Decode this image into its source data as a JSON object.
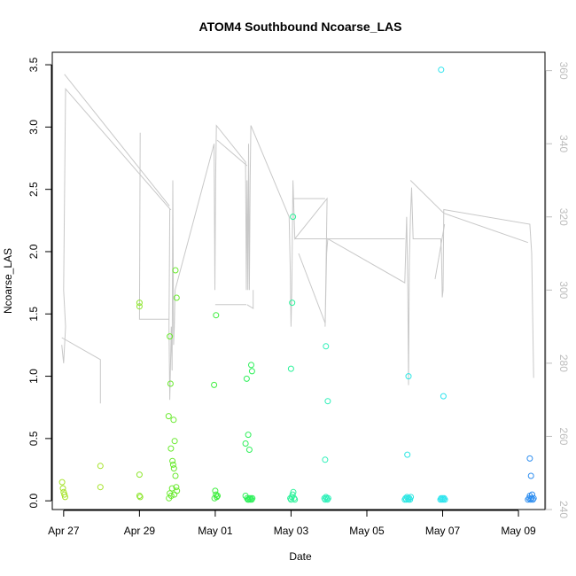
{
  "chart_data": {
    "type": "scatter",
    "title": "ATOM4 Southbound Ncoarse_LAS",
    "xlabel": "Date",
    "ylabel": "Ncoarse_LAS",
    "xlim": [
      -0.3,
      12.7
    ],
    "ylim": [
      -0.07,
      3.6
    ],
    "y2lim": [
      240,
      365
    ],
    "grid": false,
    "legend": "none",
    "x_ticks": [
      {
        "value": 0,
        "label": "Apr 27"
      },
      {
        "value": 2,
        "label": "Apr 29"
      },
      {
        "value": 4,
        "label": "May 01"
      },
      {
        "value": 6,
        "label": "May 03"
      },
      {
        "value": 8,
        "label": "May 05"
      },
      {
        "value": 10,
        "label": "May 07"
      },
      {
        "value": 12,
        "label": "May 09"
      }
    ],
    "y_ticks": [
      0.0,
      0.5,
      1.0,
      1.5,
      2.0,
      2.5,
      3.0,
      3.5
    ],
    "y_tick_labels": [
      "0.0",
      "0.5",
      "1.0",
      "1.5",
      "2.0",
      "2.5",
      "3.0",
      "3.5"
    ],
    "y2_ticks": [
      240,
      260,
      280,
      300,
      320,
      340,
      360
    ],
    "y2_tick_labels": [
      "240",
      "260",
      "280",
      "300",
      "320",
      "340",
      "360"
    ],
    "colors": {
      "secondary_line": "#c8c8c8",
      "right_axis": "#bdbdbd",
      "frame": "#000000"
    },
    "points": [
      {
        "x": -0.04,
        "y": 0.15,
        "c": "#a6e32b"
      },
      {
        "x": -0.02,
        "y": 0.1,
        "c": "#a6e32b"
      },
      {
        "x": 0.0,
        "y": 0.07,
        "c": "#a6e32b"
      },
      {
        "x": 0.02,
        "y": 0.05,
        "c": "#a6e32b"
      },
      {
        "x": 0.04,
        "y": 0.03,
        "c": "#a6e32b"
      },
      {
        "x": 0.97,
        "y": 0.28,
        "c": "#a6e32b"
      },
      {
        "x": 0.97,
        "y": 0.11,
        "c": "#a6e32b"
      },
      {
        "x": 2.0,
        "y": 1.59,
        "c": "#8ee62f"
      },
      {
        "x": 2.0,
        "y": 1.56,
        "c": "#8ee62f"
      },
      {
        "x": 2.0,
        "y": 0.21,
        "c": "#8ee62f"
      },
      {
        "x": 2.0,
        "y": 0.04,
        "c": "#8ee62f"
      },
      {
        "x": 2.02,
        "y": 0.03,
        "c": "#8ee62f"
      },
      {
        "x": 2.8,
        "y": 1.32,
        "c": "#6aea2f"
      },
      {
        "x": 2.82,
        "y": 0.94,
        "c": "#6aea2f"
      },
      {
        "x": 2.95,
        "y": 1.85,
        "c": "#6aea2f"
      },
      {
        "x": 2.98,
        "y": 1.63,
        "c": "#6aea2f"
      },
      {
        "x": 2.77,
        "y": 0.68,
        "c": "#6aea2f"
      },
      {
        "x": 2.9,
        "y": 0.65,
        "c": "#6aea2f"
      },
      {
        "x": 2.93,
        "y": 0.48,
        "c": "#6aea2f"
      },
      {
        "x": 2.83,
        "y": 0.42,
        "c": "#6aea2f"
      },
      {
        "x": 2.87,
        "y": 0.32,
        "c": "#6aea2f"
      },
      {
        "x": 2.89,
        "y": 0.29,
        "c": "#6aea2f"
      },
      {
        "x": 2.91,
        "y": 0.26,
        "c": "#6aea2f"
      },
      {
        "x": 2.95,
        "y": 0.2,
        "c": "#6aea2f"
      },
      {
        "x": 2.97,
        "y": 0.11,
        "c": "#6aea2f"
      },
      {
        "x": 2.86,
        "y": 0.1,
        "c": "#6aea2f"
      },
      {
        "x": 2.8,
        "y": 0.06,
        "c": "#6aea2f"
      },
      {
        "x": 2.84,
        "y": 0.04,
        "c": "#6aea2f"
      },
      {
        "x": 2.92,
        "y": 0.05,
        "c": "#6aea2f"
      },
      {
        "x": 2.78,
        "y": 0.02,
        "c": "#6aea2f"
      },
      {
        "x": 2.99,
        "y": 0.08,
        "c": "#6aea2f"
      },
      {
        "x": 3.97,
        "y": 0.93,
        "c": "#3dee3d"
      },
      {
        "x": 4.02,
        "y": 1.49,
        "c": "#3dee3d"
      },
      {
        "x": 4.0,
        "y": 0.08,
        "c": "#3dee3d"
      },
      {
        "x": 4.02,
        "y": 0.05,
        "c": "#3dee3d"
      },
      {
        "x": 4.04,
        "y": 0.03,
        "c": "#3dee3d"
      },
      {
        "x": 3.98,
        "y": 0.02,
        "c": "#3dee3d"
      },
      {
        "x": 4.06,
        "y": 0.04,
        "c": "#3dee3d"
      },
      {
        "x": 4.83,
        "y": 0.98,
        "c": "#2ef05a"
      },
      {
        "x": 4.95,
        "y": 1.09,
        "c": "#2ef05a"
      },
      {
        "x": 4.97,
        "y": 1.04,
        "c": "#2ef05a"
      },
      {
        "x": 4.87,
        "y": 0.53,
        "c": "#2ef05a"
      },
      {
        "x": 4.8,
        "y": 0.46,
        "c": "#2ef05a"
      },
      {
        "x": 4.9,
        "y": 0.41,
        "c": "#2ef05a"
      },
      {
        "x": 4.8,
        "y": 0.04,
        "c": "#2ef05a"
      },
      {
        "x": 4.84,
        "y": 0.02,
        "c": "#2ef05a"
      },
      {
        "x": 4.86,
        "y": 0.01,
        "c": "#2ef05a"
      },
      {
        "x": 4.88,
        "y": 0.01,
        "c": "#2ef05a"
      },
      {
        "x": 4.9,
        "y": 0.02,
        "c": "#2ef05a"
      },
      {
        "x": 4.92,
        "y": 0.01,
        "c": "#2ef05a"
      },
      {
        "x": 4.94,
        "y": 0.02,
        "c": "#2ef05a"
      },
      {
        "x": 4.96,
        "y": 0.01,
        "c": "#2ef05a"
      },
      {
        "x": 4.98,
        "y": 0.02,
        "c": "#2ef05a"
      },
      {
        "x": 6.05,
        "y": 2.28,
        "c": "#2cf29a"
      },
      {
        "x": 6.03,
        "y": 1.59,
        "c": "#2cf29a"
      },
      {
        "x": 6.0,
        "y": 1.06,
        "c": "#2cf29a"
      },
      {
        "x": 5.98,
        "y": 0.02,
        "c": "#2cf29a"
      },
      {
        "x": 6.0,
        "y": 0.01,
        "c": "#2cf29a"
      },
      {
        "x": 6.02,
        "y": 0.03,
        "c": "#2cf29a"
      },
      {
        "x": 6.04,
        "y": 0.05,
        "c": "#2cf29a"
      },
      {
        "x": 6.06,
        "y": 0.07,
        "c": "#2cf29a"
      },
      {
        "x": 6.08,
        "y": 0.02,
        "c": "#2cf29a"
      },
      {
        "x": 6.1,
        "y": 0.01,
        "c": "#2cf29a"
      },
      {
        "x": 6.92,
        "y": 1.24,
        "c": "#2cf0b8"
      },
      {
        "x": 6.97,
        "y": 0.8,
        "c": "#2cf0b8"
      },
      {
        "x": 6.9,
        "y": 0.33,
        "c": "#2cf0b8"
      },
      {
        "x": 6.88,
        "y": 0.02,
        "c": "#2cf0b8"
      },
      {
        "x": 6.9,
        "y": 0.01,
        "c": "#2cf0b8"
      },
      {
        "x": 6.92,
        "y": 0.03,
        "c": "#2cf0b8"
      },
      {
        "x": 6.94,
        "y": 0.02,
        "c": "#2cf0b8"
      },
      {
        "x": 6.96,
        "y": 0.01,
        "c": "#2cf0b8"
      },
      {
        "x": 6.98,
        "y": 0.02,
        "c": "#2cf0b8"
      },
      {
        "x": 9.1,
        "y": 1.0,
        "c": "#2ee6e3"
      },
      {
        "x": 9.07,
        "y": 0.37,
        "c": "#2ee6e3"
      },
      {
        "x": 9.0,
        "y": 0.01,
        "c": "#2ee6e3"
      },
      {
        "x": 9.02,
        "y": 0.02,
        "c": "#2ee6e3"
      },
      {
        "x": 9.04,
        "y": 0.01,
        "c": "#2ee6e3"
      },
      {
        "x": 9.06,
        "y": 0.03,
        "c": "#2ee6e3"
      },
      {
        "x": 9.08,
        "y": 0.02,
        "c": "#2ee6e3"
      },
      {
        "x": 9.1,
        "y": 0.01,
        "c": "#2ee6e3"
      },
      {
        "x": 9.12,
        "y": 0.02,
        "c": "#2ee6e3"
      },
      {
        "x": 9.14,
        "y": 0.01,
        "c": "#2ee6e3"
      },
      {
        "x": 9.16,
        "y": 0.03,
        "c": "#2ee6e3"
      },
      {
        "x": 9.96,
        "y": 3.46,
        "c": "#2ee4ee"
      },
      {
        "x": 10.02,
        "y": 0.84,
        "c": "#2ee4ee"
      },
      {
        "x": 9.94,
        "y": 0.01,
        "c": "#2ee4ee"
      },
      {
        "x": 9.96,
        "y": 0.02,
        "c": "#2ee4ee"
      },
      {
        "x": 9.98,
        "y": 0.01,
        "c": "#2ee4ee"
      },
      {
        "x": 10.0,
        "y": 0.02,
        "c": "#2ee4ee"
      },
      {
        "x": 10.02,
        "y": 0.01,
        "c": "#2ee4ee"
      },
      {
        "x": 10.04,
        "y": 0.02,
        "c": "#2ee4ee"
      },
      {
        "x": 10.06,
        "y": 0.01,
        "c": "#2ee4ee"
      },
      {
        "x": 12.3,
        "y": 0.34,
        "c": "#2e8ef0"
      },
      {
        "x": 12.33,
        "y": 0.2,
        "c": "#2e8ef0"
      },
      {
        "x": 12.25,
        "y": 0.01,
        "c": "#2e8ef0"
      },
      {
        "x": 12.28,
        "y": 0.02,
        "c": "#2e8ef0"
      },
      {
        "x": 12.3,
        "y": 0.04,
        "c": "#2e8ef0"
      },
      {
        "x": 12.32,
        "y": 0.01,
        "c": "#2e8ef0"
      },
      {
        "x": 12.34,
        "y": 0.02,
        "c": "#2e8ef0"
      },
      {
        "x": 12.36,
        "y": 0.05,
        "c": "#2e8ef0"
      },
      {
        "x": 12.38,
        "y": 0.01,
        "c": "#2e8ef0"
      },
      {
        "x": 12.4,
        "y": 0.02,
        "c": "#2e8ef0"
      }
    ],
    "secondary_series": {
      "axis": "right",
      "points": [
        [
          -0.05,
          285
        ],
        [
          0.0,
          280
        ],
        [
          0.05,
          290
        ],
        [
          0.0,
          300
        ],
        [
          0.05,
          355
        ],
        [
          2.82,
          322
        ],
        [
          2.8,
          322
        ],
        [
          2.78,
          290
        ],
        [
          2.8,
          270
        ],
        [
          2.84,
          290
        ],
        [
          2.86,
          278
        ],
        [
          2.88,
          330
        ],
        [
          2.9,
          285
        ],
        [
          2.92,
          290
        ],
        [
          2.94,
          300
        ],
        [
          3.97,
          340
        ],
        [
          3.99,
          300
        ],
        [
          4.01,
          330
        ],
        [
          4.03,
          345
        ],
        [
          4.8,
          335
        ],
        [
          4.82,
          300
        ],
        [
          4.84,
          330
        ],
        [
          4.86,
          300
        ],
        [
          4.88,
          340
        ],
        [
          4.9,
          300
        ],
        [
          4.92,
          330
        ],
        [
          4.94,
          345
        ],
        [
          5.95,
          320
        ],
        [
          5.98,
          305
        ],
        [
          6.0,
          290
        ],
        [
          6.02,
          300
        ],
        [
          6.05,
          330
        ],
        [
          6.08,
          320
        ],
        [
          6.1,
          314
        ],
        [
          6.95,
          325
        ],
        [
          6.92,
          304
        ],
        [
          6.9,
          290
        ],
        [
          6.94,
          310
        ],
        [
          6.97,
          314
        ],
        [
          9.0,
          302
        ],
        [
          9.05,
          320
        ],
        [
          9.08,
          300
        ],
        [
          9.1,
          274
        ],
        [
          9.12,
          308
        ],
        [
          9.15,
          320
        ],
        [
          9.18,
          328
        ],
        [
          9.22,
          314
        ],
        [
          9.95,
          314
        ],
        [
          9.97,
          310
        ],
        [
          9.99,
          298
        ],
        [
          10.01,
          300
        ],
        [
          10.03,
          322
        ],
        [
          12.3,
          318
        ],
        [
          12.35,
          310
        ],
        [
          12.4,
          276
        ]
      ],
      "segments": [
        [
          [
            -0.05,
            287
          ],
          [
            0.97,
            281
          ],
          [
            0.97,
            269
          ]
        ],
        [
          [
            0.02,
            359
          ],
          [
            2.79,
            323
          ]
        ],
        [
          [
            2.02,
            343
          ],
          [
            2.0,
            292
          ],
          [
            2.78,
            292
          ]
        ],
        [
          [
            4.0,
            296
          ],
          [
            4.82,
            296
          ]
        ],
        [
          [
            4.05,
            341
          ],
          [
            4.84,
            334
          ]
        ],
        [
          [
            4.84,
            296
          ],
          [
            5.0,
            295
          ],
          [
            5.0,
            300
          ]
        ],
        [
          [
            6.1,
            314
          ],
          [
            9.0,
            314
          ]
        ],
        [
          [
            6.05,
            325
          ],
          [
            6.9,
            325
          ]
        ],
        [
          [
            6.2,
            310
          ],
          [
            6.9,
            291
          ]
        ],
        [
          [
            9.15,
            330
          ],
          [
            10.03,
            321
          ],
          [
            12.25,
            313
          ]
        ],
        [
          [
            9.8,
            303
          ],
          [
            10.05,
            318
          ]
        ]
      ]
    }
  }
}
